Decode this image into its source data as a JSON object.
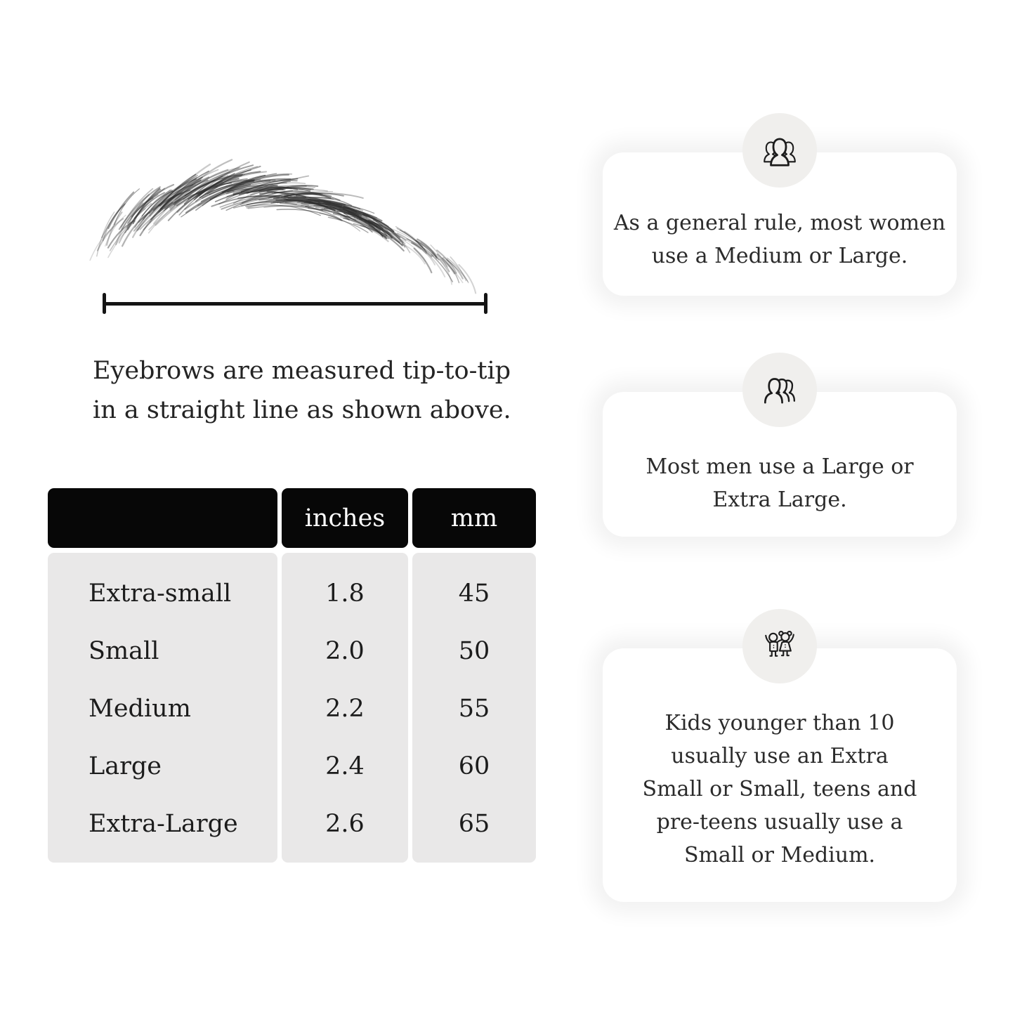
{
  "page": {
    "background": "#ffffff",
    "text_color": "#242424"
  },
  "measurement_figure": {
    "illustration": "eyebrow-sketch",
    "caption": {
      "text": "Eyebrows are measured tip-to-tip in a straight line as shown above.",
      "lines": [
        "Eyebrows are measured tip-to-tip",
        "in a straight line as shown above."
      ]
    }
  },
  "size_table": {
    "columns": [
      "",
      "inches",
      "mm"
    ],
    "rows": [
      {
        "label": "Extra-small",
        "inches": "1.8",
        "mm": "45"
      },
      {
        "label": "Small",
        "inches": "2.0",
        "mm": "50"
      },
      {
        "label": "Medium",
        "inches": "2.2",
        "mm": "55"
      },
      {
        "label": "Large",
        "inches": "2.4",
        "mm": "60"
      },
      {
        "label": "Extra-Large",
        "inches": "2.6",
        "mm": "65"
      }
    ],
    "colors": {
      "header_bg": "#070707",
      "header_text": "#ffffff",
      "body_bg": "#e9e8e8",
      "body_text": "#1c1c1c"
    }
  },
  "tip_cards": [
    {
      "icon": "women-group-icon",
      "text": "As a general rule, most women use a Medium or Large.",
      "lines": [
        "As a general rule, most women",
        "use a Medium or Large."
      ]
    },
    {
      "icon": "men-group-icon",
      "text": "Most men use a Large or Extra Large.",
      "lines": [
        "Most men use a Large or",
        "Extra Large."
      ]
    },
    {
      "icon": "kids-icon",
      "text": "Kids younger than 10 usually use an Extra Small or Small, teens and pre-teens usually use a Small or Medium.",
      "lines": [
        "Kids younger than 10",
        "usually use an Extra",
        "Small or Small, teens and",
        "pre-teens usually use a",
        "Small or Medium."
      ]
    }
  ],
  "card_style": {
    "card_bg": "#ffffff",
    "icon_circle_bg": "#f0efed",
    "icon_stroke": "#1c1c1c"
  },
  "measurement_line_color": "#141414",
  "chart_data": {
    "type": "table",
    "columns": [
      "",
      "inches",
      "mm"
    ],
    "rows": [
      [
        "Extra-small",
        1.8,
        45
      ],
      [
        "Small",
        2.0,
        50
      ],
      [
        "Medium",
        2.2,
        55
      ],
      [
        "Large",
        2.4,
        60
      ],
      [
        "Extra-Large",
        2.6,
        65
      ]
    ]
  }
}
